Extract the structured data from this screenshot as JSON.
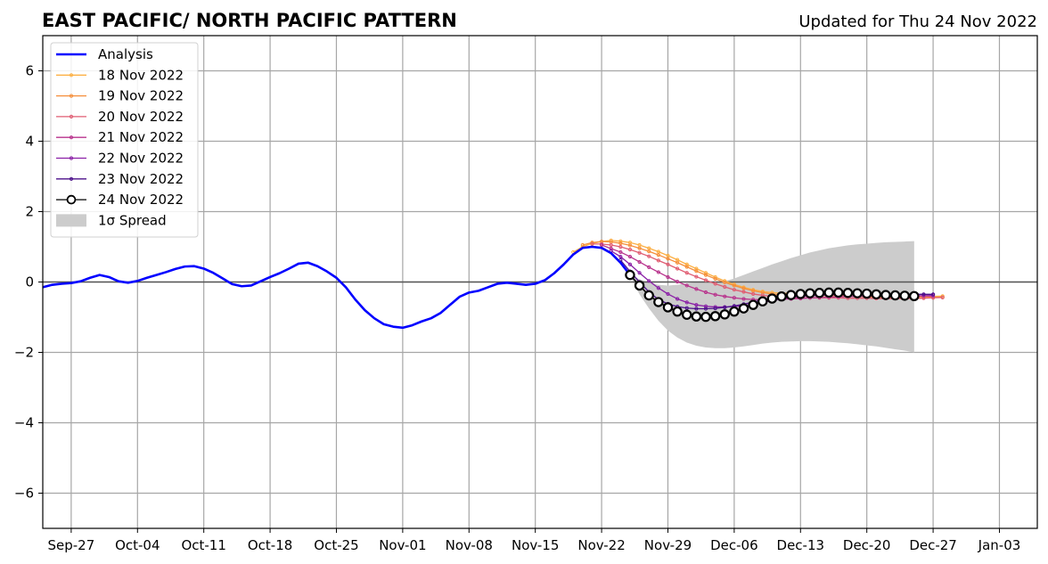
{
  "chart_data": {
    "type": "line",
    "title": "EAST PACIFIC/ NORTH PACIFIC PATTERN",
    "subtitle": "Updated for Thu 24 Nov 2022",
    "xlim": [
      "2022-09-24",
      "2023-01-07"
    ],
    "ylim": [
      -7,
      7
    ],
    "grid": true,
    "legend_position": "top-left",
    "x_ticks": [
      "2022-09-27",
      "2022-10-04",
      "2022-10-11",
      "2022-10-18",
      "2022-10-25",
      "2022-11-01",
      "2022-11-08",
      "2022-11-15",
      "2022-11-22",
      "2022-11-29",
      "2022-12-06",
      "2022-12-13",
      "2022-12-20",
      "2022-12-27",
      "2023-01-03"
    ],
    "x_tick_labels": [
      "Sep-27",
      "Oct-04",
      "Oct-11",
      "Oct-18",
      "Oct-25",
      "Nov-01",
      "Nov-08",
      "Nov-15",
      "Nov-22",
      "Nov-29",
      "Dec-06",
      "Dec-13",
      "Dec-20",
      "Dec-27",
      "Jan-03"
    ],
    "y_ticks": [
      -6,
      -4,
      -2,
      0,
      2,
      4,
      6
    ],
    "y_tick_labels": [
      "−6",
      "−4",
      "−2",
      "0",
      "2",
      "4",
      "6"
    ],
    "analysis": {
      "name": "Analysis",
      "color": "#0000ff",
      "start": "2022-09-24",
      "values": [
        -0.15,
        -0.08,
        -0.05,
        -0.03,
        0.02,
        0.12,
        0.2,
        0.14,
        0.02,
        -0.02,
        0.03,
        0.12,
        0.2,
        0.28,
        0.37,
        0.44,
        0.45,
        0.38,
        0.26,
        0.1,
        -0.06,
        -0.12,
        -0.1,
        0.02,
        0.14,
        0.25,
        0.38,
        0.52,
        0.55,
        0.45,
        0.3,
        0.12,
        -0.15,
        -0.5,
        -0.8,
        -1.03,
        -1.2,
        -1.27,
        -1.3,
        -1.23,
        -1.12,
        -1.03,
        -0.88,
        -0.65,
        -0.42,
        -0.3,
        -0.25,
        -0.15,
        -0.05,
        -0.02,
        -0.05,
        -0.08,
        -0.05,
        0.05,
        0.25,
        0.5,
        0.78,
        0.97,
        1.0,
        0.97,
        0.82,
        0.55,
        0.2
      ]
    },
    "forecasts": [
      {
        "name": "18 Nov 2022",
        "color": "#fcb045",
        "start": "2022-11-19",
        "values": [
          0.85,
          1.0,
          1.1,
          1.15,
          1.18,
          1.16,
          1.12,
          1.05,
          0.96,
          0.86,
          0.75,
          0.63,
          0.5,
          0.38,
          0.26,
          0.14,
          0.03,
          -0.07,
          -0.15,
          -0.22,
          -0.27,
          -0.3,
          -0.32,
          -0.32,
          -0.31,
          -0.3,
          -0.29,
          -0.29,
          -0.3,
          -0.32,
          -0.34,
          -0.36,
          -0.38,
          -0.4,
          -0.41,
          -0.42,
          -0.42,
          -0.42,
          -0.41,
          -0.4
        ]
      },
      {
        "name": "19 Nov 2022",
        "color": "#f58e3a",
        "start": "2022-11-20",
        "values": [
          1.05,
          1.12,
          1.15,
          1.14,
          1.1,
          1.04,
          0.96,
          0.87,
          0.77,
          0.66,
          0.55,
          0.43,
          0.31,
          0.2,
          0.09,
          -0.01,
          -0.1,
          -0.18,
          -0.25,
          -0.3,
          -0.34,
          -0.37,
          -0.38,
          -0.39,
          -0.39,
          -0.39,
          -0.39,
          -0.39,
          -0.4,
          -0.41,
          -0.42,
          -0.43,
          -0.44,
          -0.45,
          -0.45,
          -0.45,
          -0.45,
          -0.44,
          -0.43
        ]
      },
      {
        "name": "20 Nov 2022",
        "color": "#e05d72",
        "start": "2022-11-21",
        "values": [
          1.08,
          1.08,
          1.05,
          1.0,
          0.92,
          0.83,
          0.73,
          0.61,
          0.5,
          0.38,
          0.26,
          0.15,
          0.05,
          -0.05,
          -0.14,
          -0.22,
          -0.28,
          -0.34,
          -0.38,
          -0.41,
          -0.43,
          -0.44,
          -0.45,
          -0.45,
          -0.45,
          -0.45,
          -0.45,
          -0.46,
          -0.46,
          -0.46,
          -0.47,
          -0.47,
          -0.47,
          -0.47,
          -0.47,
          -0.46,
          -0.45,
          -0.44
        ]
      },
      {
        "name": "21 Nov 2022",
        "color": "#b8328c",
        "start": "2022-11-22",
        "values": [
          1.05,
          0.95,
          0.85,
          0.72,
          0.57,
          0.42,
          0.28,
          0.14,
          0.01,
          -0.1,
          -0.2,
          -0.29,
          -0.36,
          -0.41,
          -0.45,
          -0.48,
          -0.5,
          -0.5,
          -0.5,
          -0.49,
          -0.48,
          -0.47,
          -0.45,
          -0.44,
          -0.43,
          -0.42,
          -0.41,
          -0.41,
          -0.4,
          -0.4,
          -0.4,
          -0.4,
          -0.4,
          -0.4,
          -0.4,
          -0.4
        ]
      },
      {
        "name": "22 Nov 2022",
        "color": "#8a1fa6",
        "start": "2022-11-23",
        "values": [
          0.88,
          0.72,
          0.5,
          0.26,
          0.03,
          -0.17,
          -0.34,
          -0.48,
          -0.58,
          -0.65,
          -0.69,
          -0.71,
          -0.71,
          -0.7,
          -0.67,
          -0.63,
          -0.58,
          -0.53,
          -0.48,
          -0.44,
          -0.41,
          -0.39,
          -0.38,
          -0.37,
          -0.36,
          -0.36,
          -0.35,
          -0.35,
          -0.35,
          -0.35,
          -0.35,
          -0.36,
          -0.36,
          -0.36,
          -0.37
        ]
      },
      {
        "name": "23 Nov 2022",
        "color": "#4b0f8a",
        "start": "2022-11-24",
        "values": [
          0.62,
          0.3,
          0.0,
          -0.28,
          -0.5,
          -0.62,
          -0.7,
          -0.74,
          -0.76,
          -0.76,
          -0.75,
          -0.72,
          -0.68,
          -0.63,
          -0.57,
          -0.51,
          -0.46,
          -0.42,
          -0.39,
          -0.37,
          -0.35,
          -0.34,
          -0.33,
          -0.33,
          -0.33,
          -0.33,
          -0.33,
          -0.34,
          -0.34,
          -0.34,
          -0.34,
          -0.35,
          -0.35,
          -0.35
        ]
      },
      {
        "name": "24 Nov 2022",
        "color": "#000000",
        "start": "2022-11-25",
        "marker": "open-circle",
        "values": [
          0.2,
          -0.1,
          -0.38,
          -0.57,
          -0.72,
          -0.84,
          -0.93,
          -0.98,
          -0.99,
          -0.97,
          -0.92,
          -0.84,
          -0.75,
          -0.65,
          -0.55,
          -0.47,
          -0.41,
          -0.37,
          -0.34,
          -0.32,
          -0.31,
          -0.3,
          -0.3,
          -0.31,
          -0.32,
          -0.33,
          -0.35,
          -0.37,
          -0.38,
          -0.39,
          -0.4
        ]
      }
    ],
    "spread": {
      "name": "1σ Spread",
      "color": "#cccccc",
      "start": "2022-11-25",
      "upper": [
        0.2,
        0.08,
        -0.02,
        -0.08,
        -0.1,
        -0.08,
        -0.04,
        -0.01,
        0.0,
        0.0,
        0.02,
        0.1,
        0.2,
        0.3,
        0.4,
        0.5,
        0.59,
        0.68,
        0.76,
        0.84,
        0.9,
        0.96,
        1.0,
        1.04,
        1.07,
        1.09,
        1.11,
        1.13,
        1.14,
        1.15,
        1.16
      ],
      "lower": [
        0.2,
        -0.35,
        -0.75,
        -1.1,
        -1.38,
        -1.58,
        -1.72,
        -1.81,
        -1.86,
        -1.88,
        -1.88,
        -1.86,
        -1.83,
        -1.79,
        -1.75,
        -1.72,
        -1.7,
        -1.69,
        -1.68,
        -1.68,
        -1.69,
        -1.7,
        -1.72,
        -1.74,
        -1.77,
        -1.8,
        -1.83,
        -1.87,
        -1.91,
        -1.95,
        -2.0
      ]
    }
  }
}
